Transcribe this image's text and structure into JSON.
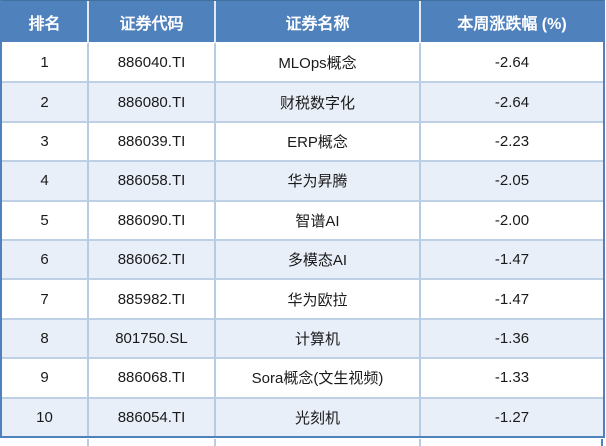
{
  "colors": {
    "header_bg": "#4f81bd",
    "outer_border": "#4f81bd",
    "gridline": "#b6cce4",
    "zebra_row_bg": "#e9eff8",
    "header_text": "#ffffff",
    "body_text": "#1a1a1a"
  },
  "chart_data": {
    "type": "table",
    "columns": [
      "排名",
      "证券代码",
      "证券名称",
      "本周涨跌幅 (%)"
    ],
    "rows": [
      [
        "1",
        "886040.TI",
        "MLOps概念",
        "-2.64"
      ],
      [
        "2",
        "886080.TI",
        "财税数字化",
        "-2.64"
      ],
      [
        "3",
        "886039.TI",
        "ERP概念",
        "-2.23"
      ],
      [
        "4",
        "886058.TI",
        "华为昇腾",
        "-2.05"
      ],
      [
        "5",
        "886090.TI",
        "智谱AI",
        "-2.00"
      ],
      [
        "6",
        "886062.TI",
        "多模态AI",
        "-1.47"
      ],
      [
        "7",
        "885982.TI",
        "华为欧拉",
        "-1.47"
      ],
      [
        "8",
        "801750.SL",
        "计算机",
        "-1.36"
      ],
      [
        "9",
        "886068.TI",
        "Sora概念(文生视频)",
        "-1.33"
      ],
      [
        "10",
        "886054.TI",
        "光刻机",
        "-1.27"
      ]
    ],
    "layout": {
      "zebra": true,
      "grid": true,
      "column_alignment": [
        "center",
        "center",
        "center",
        "center"
      ]
    }
  }
}
